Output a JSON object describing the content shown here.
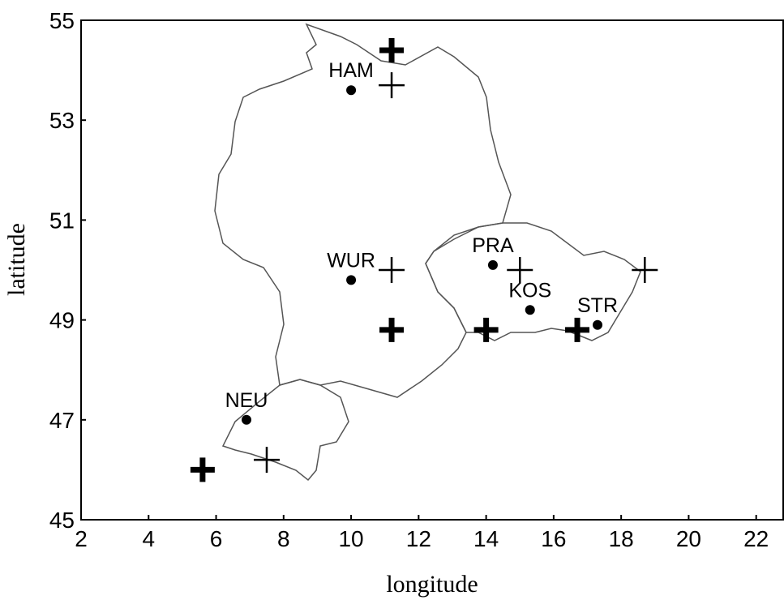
{
  "chart_data": {
    "type": "scatter",
    "xlabel": "longitude",
    "ylabel": "latitude",
    "xlim": [
      2,
      22.8
    ],
    "ylim": [
      45,
      55
    ],
    "xticks": [
      2,
      4,
      6,
      8,
      10,
      12,
      14,
      16,
      18,
      20,
      22
    ],
    "yticks": [
      45,
      47,
      49,
      51,
      53,
      55
    ],
    "series": [
      {
        "marker": "dot",
        "color": "#000000",
        "x": [
          10.0,
          10.0,
          14.2,
          15.3,
          17.3,
          6.9
        ],
        "y": [
          53.6,
          49.8,
          50.1,
          49.2,
          48.9,
          47.0
        ],
        "labels": [
          "HAM",
          "WUR",
          "PRA",
          "KOS",
          "STR",
          "NEU"
        ]
      },
      {
        "marker": "cross",
        "color": "#000000",
        "x": [
          11.2,
          11.2,
          15.0,
          18.7,
          7.5
        ],
        "y": [
          53.7,
          50.0,
          50.0,
          50.0,
          46.2
        ]
      },
      {
        "marker": "bold-cross",
        "color": "#000000",
        "x": [
          11.2,
          11.2,
          14.0,
          16.7,
          5.6
        ],
        "y": [
          54.4,
          48.8,
          48.8,
          48.8,
          46.0
        ]
      }
    ]
  }
}
